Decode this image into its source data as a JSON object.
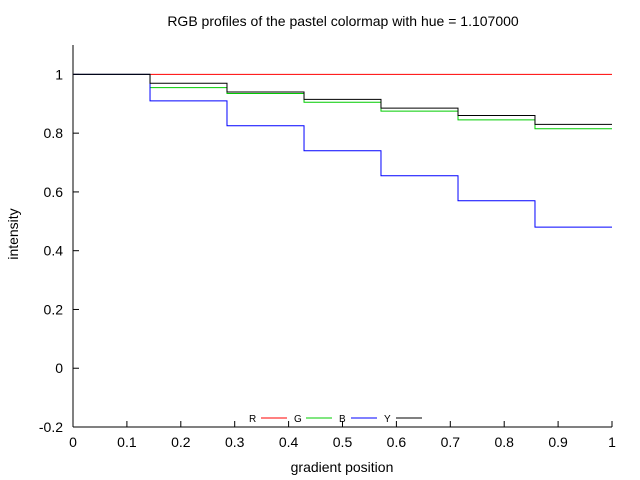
{
  "chart_data": {
    "type": "line",
    "title": "RGB profiles of the pastel colormap with hue = 1.107000",
    "xlabel": "gradient position",
    "ylabel": "intensity",
    "xlim": [
      0,
      1
    ],
    "ylim": [
      -0.2,
      1.1
    ],
    "x_ticks": [
      "0",
      "0.1",
      "0.2",
      "0.3",
      "0.4",
      "0.5",
      "0.6",
      "0.7",
      "0.8",
      "0.9",
      "1"
    ],
    "y_ticks": [
      "-0.2",
      "0",
      "0.2",
      "0.4",
      "0.6",
      "0.8",
      "1"
    ],
    "grid": false,
    "legend_position": "bottom-center",
    "step_edges": [
      0,
      0.1429,
      0.2857,
      0.4286,
      0.5714,
      0.7143,
      0.8571,
      1
    ],
    "series": [
      {
        "name": "R",
        "color": "#ff0000",
        "values": [
          1,
          1,
          1,
          1,
          1,
          1,
          1
        ]
      },
      {
        "name": "G",
        "color": "#00cc00",
        "values": [
          1,
          0.955,
          0.935,
          0.905,
          0.875,
          0.845,
          0.815
        ]
      },
      {
        "name": "B",
        "color": "#0000ff",
        "values": [
          1,
          0.91,
          0.825,
          0.74,
          0.655,
          0.57,
          0.48
        ]
      },
      {
        "name": "Y",
        "color": "#000000",
        "values": [
          1,
          0.97,
          0.94,
          0.915,
          0.885,
          0.86,
          0.83
        ]
      }
    ]
  }
}
